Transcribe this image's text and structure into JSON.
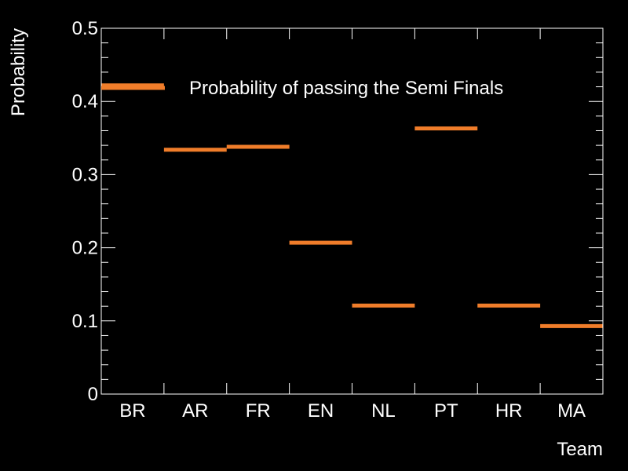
{
  "chart_data": {
    "type": "bar",
    "style": "horizontal-step-markers",
    "categories": [
      "BR",
      "AR",
      "FR",
      "EN",
      "NL",
      "PT",
      "HR",
      "MA"
    ],
    "series": [
      {
        "name": "Probability of passing the Semi Finals",
        "values": [
          0.422,
          0.334,
          0.338,
          0.207,
          0.121,
          0.363,
          0.121,
          0.093
        ]
      }
    ],
    "xlabel": "Team",
    "ylabel": "Probability",
    "ylim": [
      0,
      0.5
    ],
    "yticks": [
      "0",
      "0.1",
      "0.2",
      "0.3",
      "0.4",
      "0.5"
    ],
    "grid": false,
    "legend_position": "top-right",
    "colors": {
      "background": "#000000",
      "frame": "#ffffff",
      "series": "#f07d2a",
      "text": "#ffffff"
    }
  }
}
